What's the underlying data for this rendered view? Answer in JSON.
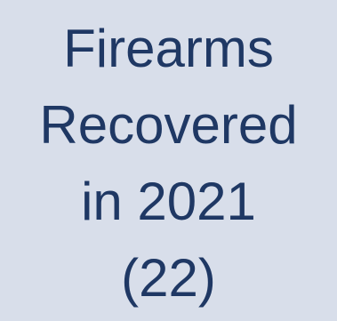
{
  "tile": {
    "lines": [
      "Firearms",
      "Recovered",
      "in 2021",
      "(22)"
    ]
  },
  "colors": {
    "background": "#d8deea",
    "text": "#1f3864"
  }
}
